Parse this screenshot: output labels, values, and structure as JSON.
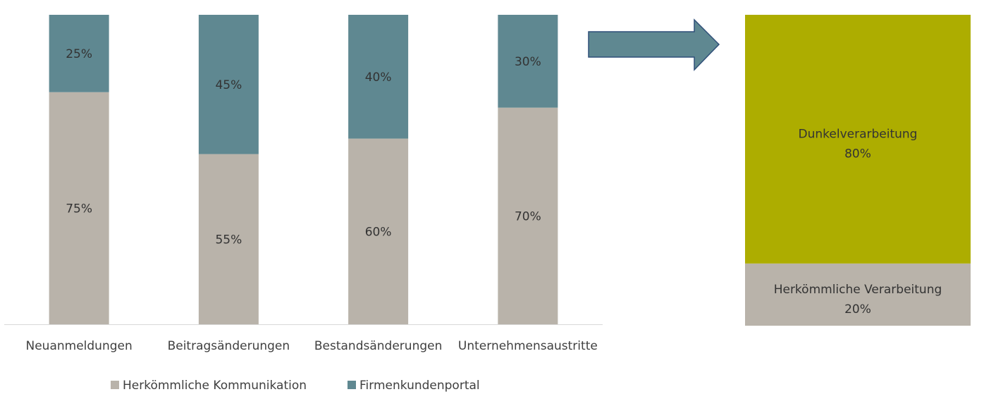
{
  "chart_data": [
    {
      "type": "bar",
      "stacked": true,
      "percent_stacked": true,
      "categories": [
        "Neuanmeldungen",
        "Beitragsänderungen",
        "Bestandsänderungen",
        "Unternehmensaustritte"
      ],
      "series": [
        {
          "name": "Herkömmliche Kommunikation",
          "values": [
            75,
            55,
            60,
            70
          ],
          "labels": [
            "75%",
            "55%",
            "60%",
            "70%"
          ],
          "color": "#B9B3AA"
        },
        {
          "name": "Firmenkundenportal",
          "values": [
            25,
            45,
            40,
            30
          ],
          "labels": [
            "25%",
            "45%",
            "40%",
            "30%"
          ],
          "color": "#5F8891"
        }
      ],
      "ylim": [
        0,
        100
      ],
      "grid": false,
      "legend_position": "bottom"
    },
    {
      "type": "bar",
      "stacked": true,
      "percent_stacked": true,
      "categories": [
        ""
      ],
      "segments": [
        {
          "name": "Herkömmliche Verarbeitung",
          "value": 20,
          "label": "20%",
          "color": "#B9B3AA"
        },
        {
          "name": "Dunkelverarbeitung",
          "value": 80,
          "label": "80%",
          "color": "#ADAD00"
        }
      ],
      "ylim": [
        0,
        100
      ]
    }
  ],
  "arrow": {
    "fill": "#5F8891",
    "stroke": "#2F4F78"
  },
  "axis_color": "#D9D9D9"
}
